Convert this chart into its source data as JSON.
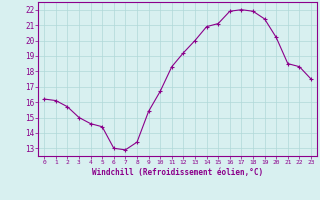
{
  "x": [
    0,
    1,
    2,
    3,
    4,
    5,
    6,
    7,
    8,
    9,
    10,
    11,
    12,
    13,
    14,
    15,
    16,
    17,
    18,
    19,
    20,
    21,
    22,
    23
  ],
  "y": [
    16.2,
    16.1,
    15.7,
    15.0,
    14.6,
    14.4,
    13.0,
    12.9,
    13.4,
    15.4,
    16.7,
    18.3,
    19.2,
    20.0,
    20.9,
    21.1,
    21.9,
    22.0,
    21.9,
    21.4,
    20.2,
    18.5,
    18.3,
    17.5
  ],
  "line_color": "#8B008B",
  "marker": "+",
  "marker_size": 3,
  "marker_lw": 0.8,
  "bg_color": "#d8f0f0",
  "grid_color": "#b0d8d8",
  "xlabel": "Windchill (Refroidissement éolien,°C)",
  "xlabel_color": "#8B008B",
  "xtick_labels": [
    "0",
    "1",
    "2",
    "3",
    "4",
    "5",
    "6",
    "7",
    "8",
    "9",
    "10",
    "11",
    "12",
    "13",
    "14",
    "15",
    "16",
    "17",
    "18",
    "19",
    "20",
    "21",
    "22",
    "23"
  ],
  "ytick_labels": [
    "13",
    "14",
    "15",
    "16",
    "17",
    "18",
    "19",
    "20",
    "21",
    "22"
  ],
  "ylim": [
    12.5,
    22.5
  ],
  "xlim": [
    -0.5,
    23.5
  ],
  "tick_color": "#8B008B",
  "spine_color": "#8B008B"
}
